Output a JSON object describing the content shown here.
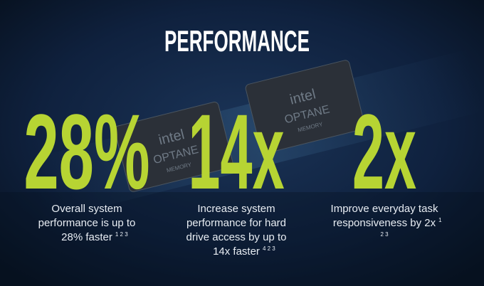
{
  "title": "PERFORMANCE",
  "chips": [
    {
      "brand": "intel",
      "line1": "OPTANE",
      "line2": "MEMORY"
    },
    {
      "brand": "intel",
      "line1": "OPTANE",
      "line2": "MEMORY"
    }
  ],
  "stats": [
    {
      "value": "28%",
      "lines": [
        "Overall system",
        "performance is up to",
        "28% faster"
      ],
      "notes": [
        "1 2 3"
      ]
    },
    {
      "value": "14x",
      "lines": [
        "Increase system",
        "performance for hard",
        "drive access by up to",
        "14x faster"
      ],
      "notes": [
        "4 2 3"
      ]
    },
    {
      "value": "2x",
      "lines": [
        "Improve everyday task",
        "responsiveness by 2x"
      ],
      "notes": [
        "1",
        "2 3"
      ]
    }
  ]
}
